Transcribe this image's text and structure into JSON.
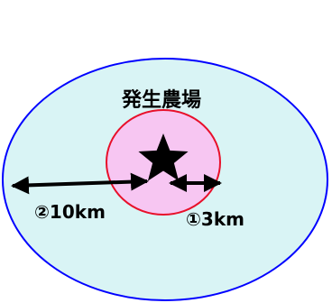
{
  "diagram": {
    "center_label": "発生農場",
    "center_marker": "star-icon",
    "zones": [
      {
        "id": "outer",
        "label": "②10km",
        "fill": "#d9f4f5",
        "stroke": "#0000ff"
      },
      {
        "id": "inner",
        "label": "①3km",
        "fill": "#f7c6f2",
        "stroke": "#e8102a"
      }
    ],
    "colors": {
      "arrow": "#000000",
      "star": "#000000",
      "text": "#000000"
    }
  }
}
